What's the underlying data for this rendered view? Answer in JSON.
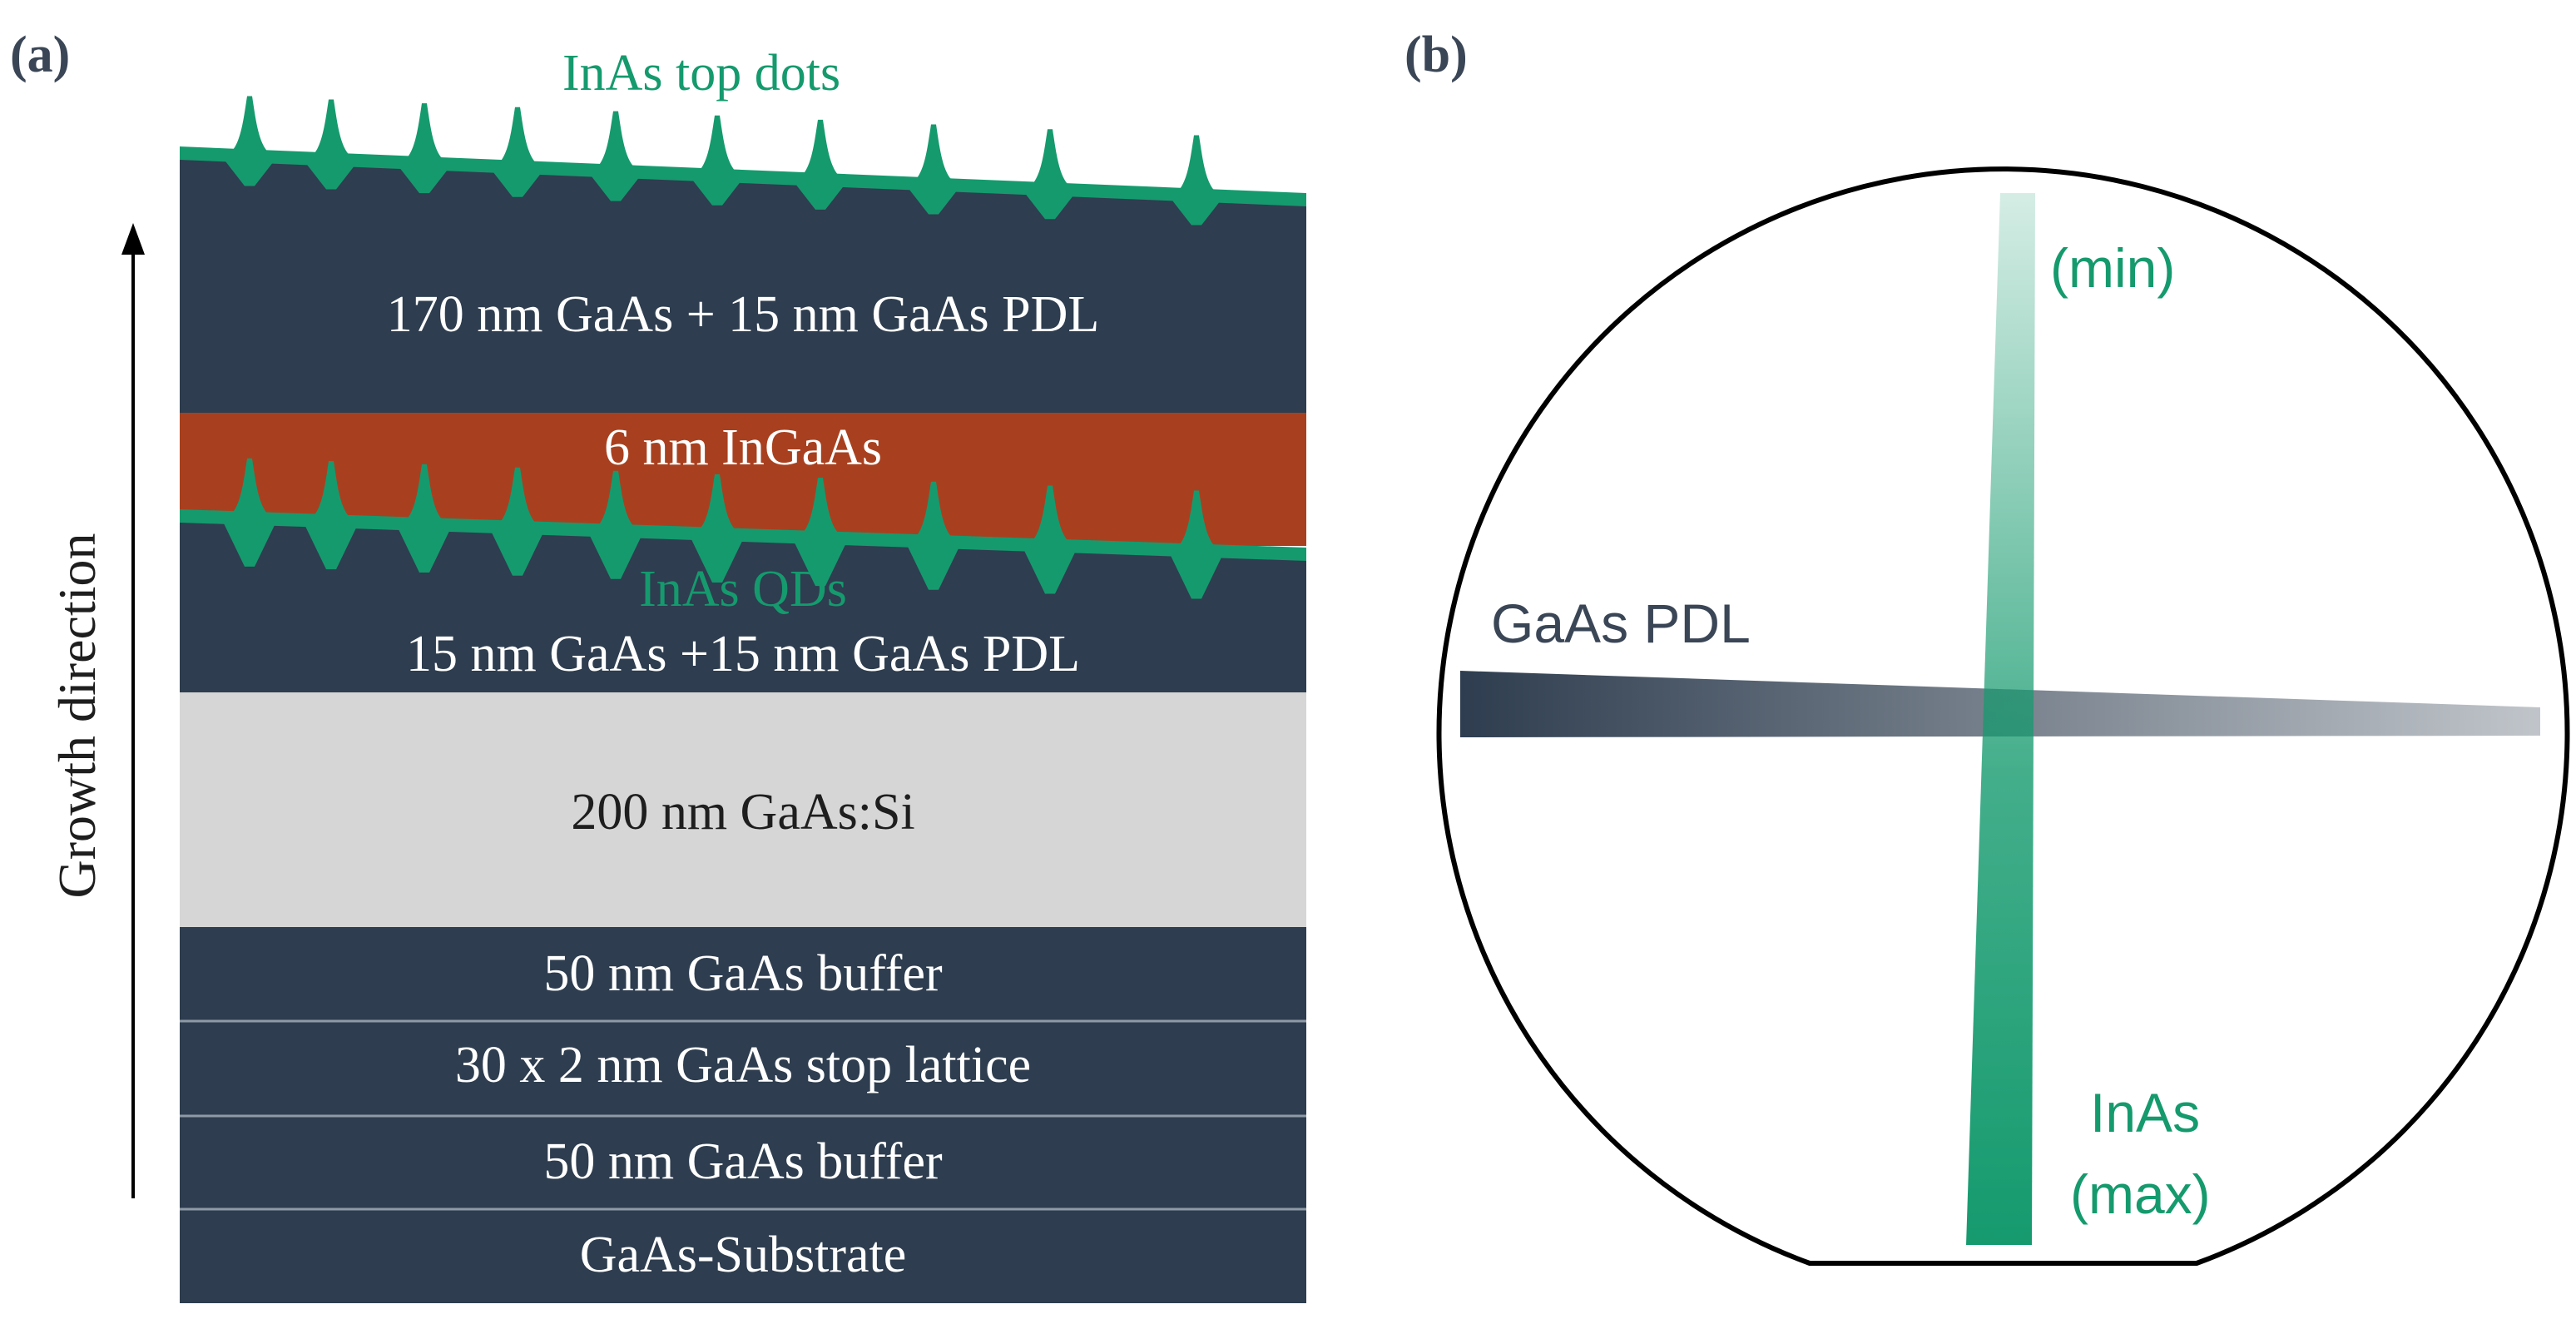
{
  "panel_a": {
    "label": "(a)",
    "top_dots_label": "InAs top dots",
    "growth_axis_label": "Growth direction",
    "layers": {
      "top": "170 nm GaAs + 15 nm GaAs PDL",
      "ingaas": "6 nm InGaAs",
      "qd_label": "InAs QDs",
      "spacer": "15 nm GaAs +15 nm GaAs PDL",
      "doped": "200 nm GaAs:Si",
      "buffer_upper": "50 nm GaAs buffer",
      "stop_lattice": "30 x 2 nm GaAs stop lattice",
      "buffer_lower": "50 nm GaAs buffer",
      "substrate": "GaAs-Substrate"
    }
  },
  "panel_b": {
    "label": "(b)",
    "pdl_label": "GaAs PDL",
    "inas_min_label": "(min)",
    "inas_max_label_line1": "InAs",
    "inas_max_label_line2": "(max)"
  },
  "colors": {
    "layer_dark": "#2e3d4f",
    "ingaas": "#a8401f",
    "doped": "#d6d6d6",
    "inas_green": "#159a6e",
    "label_gray": "#3a4656",
    "white": "#ffffff"
  }
}
